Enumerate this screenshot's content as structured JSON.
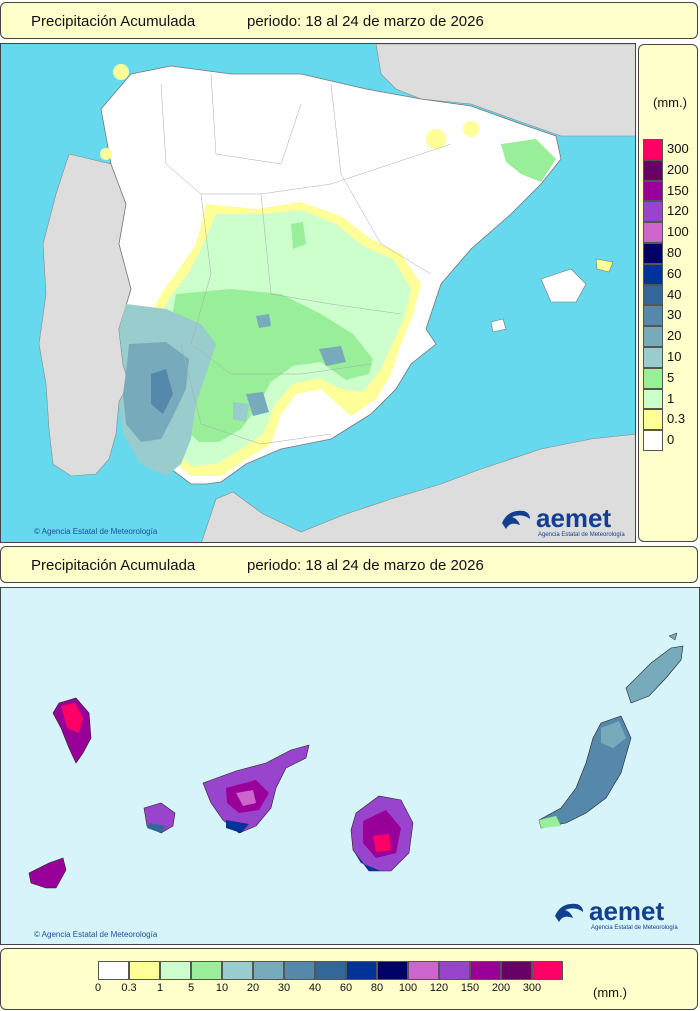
{
  "top_panel": {
    "title": "Precipitación Acumulada",
    "period": "periodo: 18 al 24 de marzo de 2026",
    "credit": "© Agencia Estatal de Meteorología",
    "logo_text": "aemet",
    "logo_subtitle": "Agencia Estatal de Meteorología"
  },
  "bottom_panel": {
    "title": "Precipitación Acumulada",
    "period": "periodo: 18 al 24 de marzo de 2026",
    "credit": "© Agencia Estatal de Meteorología",
    "logo_text": "aemet",
    "logo_subtitle": "Agencia Estatal de Meteorología"
  },
  "legend": {
    "unit": "(mm.)",
    "labels_desc": [
      "300",
      "200",
      "150",
      "120",
      "100",
      "80",
      "60",
      "40",
      "30",
      "20",
      "10",
      "5",
      "1",
      "0.3",
      "0"
    ],
    "labels_asc": [
      "0",
      "0.3",
      "1",
      "5",
      "10",
      "20",
      "30",
      "40",
      "60",
      "80",
      "100",
      "120",
      "150",
      "200",
      "300"
    ],
    "colors_asc": [
      "#ffffff",
      "#ffff99",
      "#ccffcc",
      "#99ee99",
      "#99cccc",
      "#77aabb",
      "#5588aa",
      "#336699",
      "#003399",
      "#000066",
      "#cc66cc",
      "#9944cc",
      "#990099",
      "#660066",
      "#ff0066"
    ]
  },
  "colors": {
    "sea": "#66d9ee",
    "land_other": "#dddddd",
    "canary_sea": "#d8f4fb",
    "panel_bg": "#ffffcc"
  }
}
